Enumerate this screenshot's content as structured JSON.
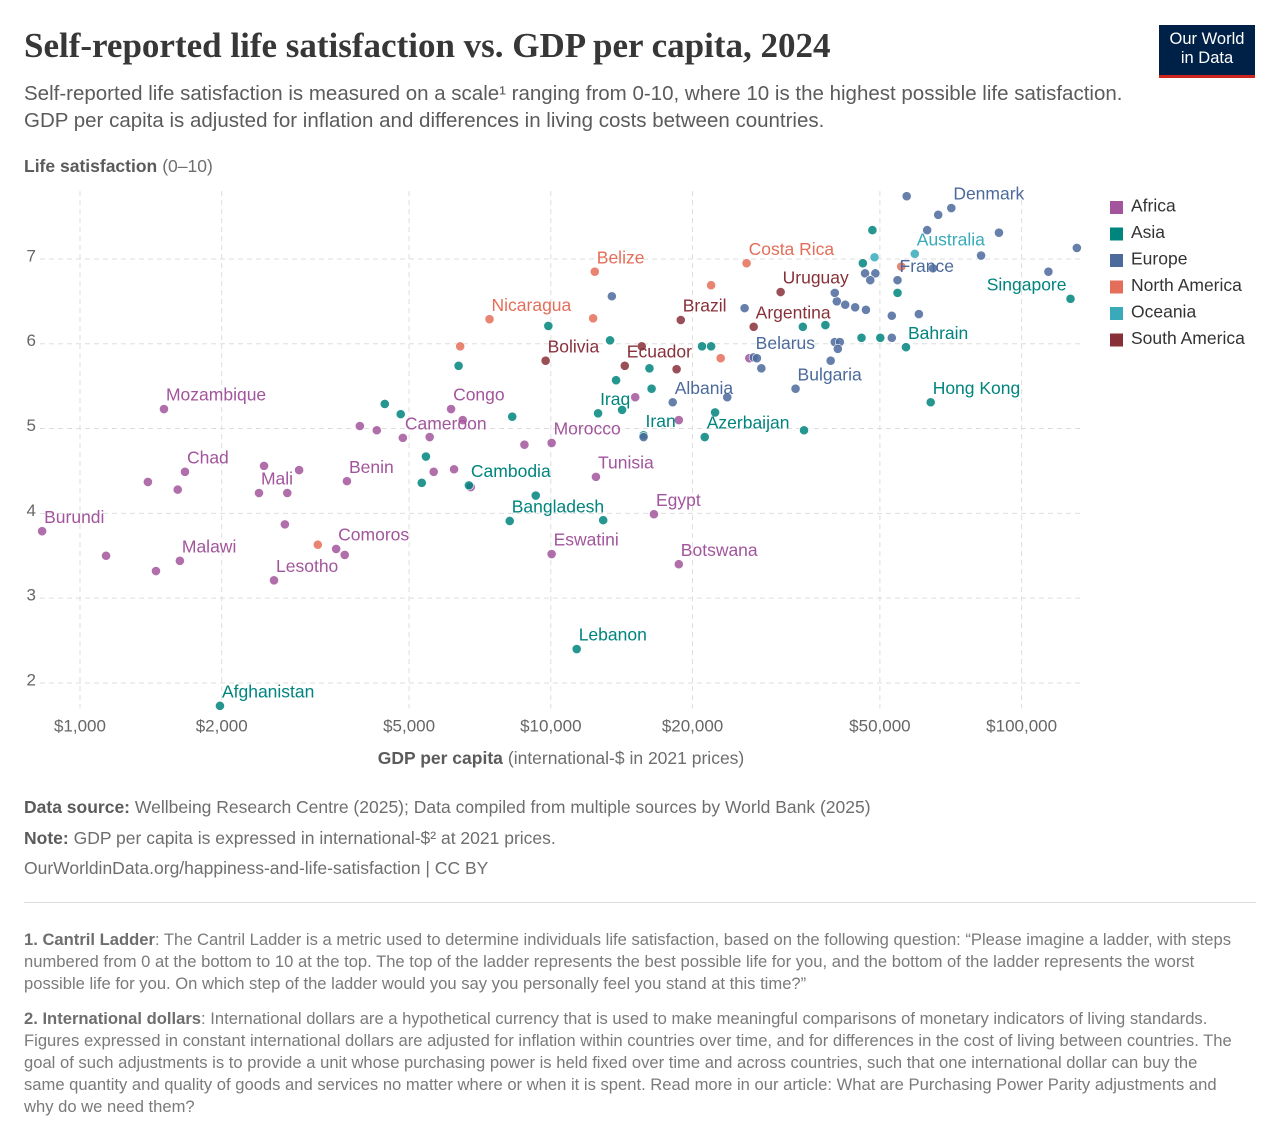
{
  "logo": {
    "line1": "Our World",
    "line2": "in Data"
  },
  "chart_data": {
    "type": "scatter",
    "title": "Self-reported life satisfaction vs. GDP per capita, 2024",
    "subtitle": "Self-reported life satisfaction is measured on a scale¹ ranging from 0-10, where 10 is the highest possible life satisfaction. GDP per capita is adjusted for inflation and differences in living costs between countries.",
    "y_label": "Life satisfaction",
    "y_label_unit": "(0–10)",
    "x_label": "GDP per capita",
    "x_label_unit": "(international-$ in 2021 prices)",
    "x_log": true,
    "grid": true,
    "legend": "right",
    "xlim": [
      820,
      135000
    ],
    "ylim": [
      1.7,
      7.8
    ],
    "xticks": [
      {
        "value": 1000,
        "label": "$1,000"
      },
      {
        "value": 2000,
        "label": "$2,000"
      },
      {
        "value": 5000,
        "label": "$5,000"
      },
      {
        "value": 10000,
        "label": "$10,000"
      },
      {
        "value": 20000,
        "label": "$20,000"
      },
      {
        "value": 50000,
        "label": "$50,000"
      },
      {
        "value": 100000,
        "label": "$100,000"
      }
    ],
    "yticks": [
      2,
      3,
      4,
      5,
      6,
      7
    ],
    "series": [
      {
        "name": "Africa",
        "color": "#a2559c",
        "x": [
          831,
          1508,
          1671,
          2400,
          1630,
          2583,
          3690,
          3500,
          4850,
          6140,
          10040,
          12470,
          10040,
          16560,
          18700,
          1394,
          1136,
          1450,
          1613,
          2460,
          2920,
          2724,
          3930,
          4270,
          3650,
          5640,
          6230,
          6760,
          8790,
          15110,
          18700,
          26400,
          2756,
          6500,
          5530
        ],
        "values": [
          3.79,
          5.23,
          4.49,
          4.24,
          3.44,
          3.21,
          4.38,
          3.58,
          4.89,
          5.23,
          4.83,
          4.43,
          3.52,
          3.99,
          3.4,
          4.37,
          3.5,
          3.32,
          4.28,
          4.56,
          4.51,
          3.87,
          5.03,
          4.98,
          3.51,
          4.49,
          4.52,
          4.31,
          4.81,
          5.37,
          5.1,
          5.83,
          4.24,
          5.1,
          4.9
        ],
        "labels": [
          "Burundi",
          "Mozambique",
          "Chad",
          "Mali",
          "Malawi",
          "Lesotho",
          "Benin",
          "Comoros",
          "Cameroon",
          "Congo",
          "Morocco",
          "Tunisia",
          "Eswatini",
          "Egypt",
          "Botswana",
          null,
          null,
          null,
          null,
          null,
          null,
          null,
          null,
          null,
          null,
          null,
          null,
          null,
          null,
          null,
          null,
          null,
          null,
          null,
          null
        ]
      },
      {
        "name": "Asia",
        "color": "#00847e",
        "x": [
          1983,
          6700,
          8180,
          11350,
          12600,
          15740,
          21230,
          56800,
          64100,
          127000,
          4440,
          4800,
          5430,
          5320,
          6370,
          8280,
          9290,
          9880,
          12920,
          13360,
          13760,
          14170,
          16200,
          16370,
          20950,
          21900,
          22330,
          34500,
          34300,
          38300,
          45700,
          48200,
          46000,
          50100,
          54500
        ],
        "values": [
          1.73,
          4.33,
          3.91,
          2.4,
          5.18,
          4.92,
          4.9,
          5.96,
          5.31,
          6.53,
          5.29,
          5.17,
          4.67,
          4.36,
          5.74,
          5.14,
          4.21,
          6.21,
          3.92,
          6.04,
          5.57,
          5.22,
          5.71,
          5.47,
          5.97,
          5.97,
          5.19,
          4.98,
          6.2,
          6.22,
          6.07,
          7.34,
          6.95,
          6.07,
          6.6
        ],
        "labels": [
          "Afghanistan",
          "Cambodia",
          "Bangladesh",
          "Lebanon",
          "Iraq",
          "Iran",
          "Azerbaijan",
          "Bahrain",
          "Hong Kong",
          "Singapore",
          null,
          null,
          null,
          null,
          null,
          null,
          null,
          null,
          null,
          null,
          null,
          null,
          null,
          null,
          null,
          null,
          null,
          null,
          null,
          null,
          null,
          null,
          null,
          null,
          null
        ]
      },
      {
        "name": "Europe",
        "color": "#4c6a9c",
        "x": [
          70900,
          54500,
          26970,
          18150,
          33100,
          57000,
          66500,
          63000,
          89500,
          131000,
          114000,
          82000,
          64800,
          46500,
          48900,
          47700,
          40500,
          42200,
          44300,
          46700,
          53000,
          60500,
          53000,
          40100,
          41100,
          40700,
          39300,
          27400,
          28000,
          25800,
          23700,
          13480,
          15740,
          40100
        ],
        "values": [
          7.6,
          6.75,
          5.84,
          5.31,
          5.47,
          7.74,
          7.52,
          7.34,
          7.31,
          7.13,
          6.85,
          7.04,
          6.89,
          6.83,
          6.83,
          6.75,
          6.5,
          6.46,
          6.43,
          6.4,
          6.33,
          6.35,
          6.07,
          6.02,
          6.02,
          5.94,
          5.8,
          5.83,
          5.71,
          6.42,
          5.37,
          6.56,
          4.9,
          6.6
        ],
        "labels": [
          "Denmark",
          "France",
          "Belarus",
          "Albania",
          "Bulgaria",
          null,
          null,
          null,
          null,
          null,
          null,
          null,
          null,
          null,
          null,
          null,
          null,
          null,
          null,
          null,
          null,
          null,
          null,
          null,
          null,
          null,
          null,
          null,
          null,
          null,
          null,
          null,
          null,
          null
        ]
      },
      {
        "name": "North America",
        "color": "#e56e5a",
        "x": [
          26050,
          12400,
          21900,
          7410,
          12300,
          6420,
          3200,
          22950,
          55500
        ],
        "values": [
          6.95,
          6.85,
          6.69,
          6.29,
          6.3,
          5.97,
          3.63,
          5.83,
          6.91
        ],
        "labels": [
          "Costa Rica",
          "Belize",
          null,
          "Nicaragua",
          null,
          null,
          null,
          null,
          null
        ]
      },
      {
        "name": "Oceania",
        "color": "#38aaba",
        "x": [
          59300,
          48700
        ],
        "values": [
          7.06,
          7.02
        ],
        "labels": [
          "Australia",
          null
        ]
      },
      {
        "name": "South America",
        "color": "#883039",
        "x": [
          30770,
          18880,
          26970,
          9750,
          14360,
          15600,
          18500
        ],
        "values": [
          6.61,
          6.28,
          6.2,
          5.8,
          5.74,
          5.97,
          5.7
        ],
        "labels": [
          "Uruguay",
          "Brazil",
          "Argentina",
          "Bolivia",
          "Ecuador",
          null,
          null
        ]
      }
    ]
  },
  "footer": {
    "source_lead": "Data source:",
    "source": "Wellbeing Research Centre (2025); Data compiled from multiple sources by World Bank (2025)",
    "note_lead": "Note:",
    "note": "GDP per capita is expressed in international-$² at 2021 prices.",
    "url": "OurWorldinData.org/happiness-and-life-satisfaction | CC BY"
  },
  "footnotes": [
    {
      "lead": "1. Cantril Ladder",
      "text": ": The Cantril Ladder is a metric used to determine individuals life satisfaction, based on the following question: “Please imagine a ladder, with steps numbered from 0 at the bottom to 10 at the top. The top of the ladder represents the best possible life for you, and the bottom of the ladder represents the worst possible life for you. On which step of the ladder would you say you personally feel you stand at this time?”"
    },
    {
      "lead": "2. International dollars",
      "text": ": International dollars are a hypothetical currency that is used to make meaningful comparisons of monetary indicators of living standards. Figures expressed in constant international dollars are adjusted for inflation within countries over time, and for differences in the cost of living between countries. The goal of such adjustments is to provide a unit whose purchasing power is held fixed over time and across countries, such that one international dollar can buy the same quantity and quality of goods and services no matter where or when it is spent. Read more in our article: What are Purchasing Power Parity adjustments and why do we need them?"
    }
  ]
}
